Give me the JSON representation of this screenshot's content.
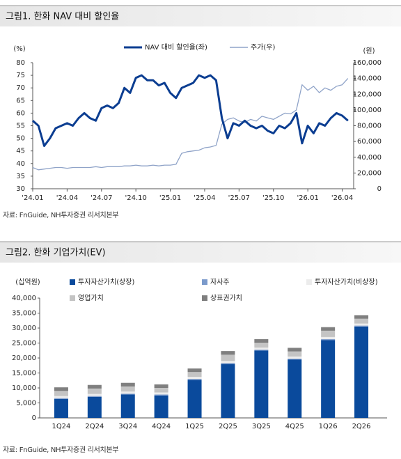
{
  "chart_data": [
    {
      "type": "line",
      "title": "그림1. 한화 NAV 대비 할인율",
      "source": "자료: FnGuide, NH투자증권 리서치본부",
      "ylabel": "(%)",
      "y2label": "(원)",
      "x": [
        0,
        0.5,
        1,
        1.5,
        2,
        2.5,
        3,
        3.5,
        4,
        4.5,
        5,
        5.5,
        6,
        6.5,
        7,
        7.5,
        8,
        8.5,
        9,
        9.5,
        10,
        10.5,
        11,
        11.5,
        12,
        12.5,
        13,
        13.5,
        14,
        14.5,
        15,
        15.5,
        16,
        16.5,
        17,
        17.5,
        18,
        18.5,
        19,
        19.5,
        20,
        20.5,
        21,
        21.5,
        22,
        22.5,
        23,
        23.5,
        24,
        24.5,
        25,
        25.5,
        26,
        26.5,
        27,
        27.5
      ],
      "xlim": [
        0,
        28
      ],
      "xticks": [
        {
          "value": 0,
          "label": "'24.01"
        },
        {
          "value": 3,
          "label": "'24.04"
        },
        {
          "value": 6,
          "label": "'24.07"
        },
        {
          "value": 9,
          "label": "'24.10"
        },
        {
          "value": 12,
          "label": "'25.01"
        },
        {
          "value": 15,
          "label": "'25.04"
        },
        {
          "value": 18,
          "label": "'25.07"
        },
        {
          "value": 21,
          "label": "'25.10"
        },
        {
          "value": 24,
          "label": "'26.01"
        },
        {
          "value": 27,
          "label": "'26.04"
        }
      ],
      "ylim": [
        30,
        80
      ],
      "yticks": [
        30,
        35,
        40,
        45,
        50,
        55,
        60,
        65,
        70,
        75,
        80
      ],
      "y2lim": [
        0,
        160000
      ],
      "y2ticks": [
        0,
        {
          "value": 20000,
          "label": "20,000"
        },
        {
          "value": 40000,
          "label": "40,000"
        },
        {
          "value": 60000,
          "label": "60,000"
        },
        {
          "value": 80000,
          "label": "80,000"
        },
        {
          "value": 100000,
          "label": "100,000"
        },
        {
          "value": 120000,
          "label": "120,000"
        },
        {
          "value": 140000,
          "label": "140,000"
        },
        {
          "value": 160000,
          "label": "160,000"
        }
      ],
      "series": [
        {
          "name": "NAV 대비 할인율(좌)",
          "color": "#0b3d91",
          "axis": "y",
          "values": [
            57,
            55,
            47,
            50,
            54,
            55,
            56,
            55,
            58,
            60,
            58,
            57,
            62,
            63,
            62,
            64,
            70,
            68,
            74,
            75,
            73,
            73,
            71,
            72,
            68,
            66,
            70,
            71,
            72,
            75,
            74,
            75,
            73,
            58,
            50,
            56,
            55,
            57,
            55,
            54,
            55,
            53,
            52,
            55,
            54,
            56,
            60,
            48,
            55,
            52,
            56,
            55,
            58,
            60,
            59,
            57
          ]
        },
        {
          "name": "주가(우)",
          "color": "#8fa3c8",
          "axis": "y2",
          "values": [
            27000,
            24000,
            25000,
            26000,
            27000,
            27000,
            26000,
            27000,
            27000,
            27000,
            27000,
            28000,
            27000,
            28000,
            28000,
            28000,
            29000,
            29000,
            30000,
            29000,
            29000,
            30000,
            29000,
            30000,
            30000,
            31000,
            45000,
            47000,
            48000,
            49000,
            52000,
            53000,
            55000,
            82000,
            88000,
            90000,
            86000,
            84000,
            88000,
            86000,
            92000,
            90000,
            88000,
            92000,
            96000,
            95000,
            100000,
            132000,
            125000,
            130000,
            122000,
            128000,
            125000,
            130000,
            132000,
            140000
          ]
        }
      ]
    },
    {
      "type": "bar",
      "stacked": true,
      "title": "그림2. 한화 기업가치(EV)",
      "source": "자료: FnGuide, NH투자증권 리서치본부",
      "ylabel": "(십억원)",
      "categories": [
        "1Q24",
        "2Q24",
        "3Q24",
        "4Q24",
        "1Q25",
        "2Q25",
        "3Q25",
        "4Q25",
        "1Q26",
        "2Q26"
      ],
      "ylim": [
        0,
        40000
      ],
      "yticks": [
        0,
        {
          "value": 5000,
          "label": "5,000"
        },
        {
          "value": 10000,
          "label": "10,000"
        },
        {
          "value": 15000,
          "label": "15,000"
        },
        {
          "value": 20000,
          "label": "20,000"
        },
        {
          "value": 25000,
          "label": "25,000"
        },
        {
          "value": 30000,
          "label": "30,000"
        },
        {
          "value": 35000,
          "label": "35,000"
        },
        {
          "value": 40000,
          "label": "40,000"
        }
      ],
      "series": [
        {
          "name": "투자자산가치(상장)",
          "color": "#0a4a9c",
          "values": [
            6300,
            7000,
            7800,
            7500,
            12700,
            18000,
            22500,
            19500,
            26000,
            30500
          ]
        },
        {
          "name": "자사주",
          "color": "#7b9acb",
          "values": [
            300,
            300,
            300,
            300,
            300,
            300,
            300,
            300,
            300,
            300
          ]
        },
        {
          "name": "투자자산가치(비상장)",
          "color": "#ececec",
          "values": [
            700,
            700,
            700,
            700,
            700,
            700,
            700,
            700,
            700,
            700
          ]
        },
        {
          "name": "영업가치",
          "color": "#c4c4c4",
          "values": [
            1700,
            1800,
            1700,
            1500,
            1600,
            2100,
            1600,
            1700,
            2100,
            1600
          ]
        },
        {
          "name": "상표권가치",
          "color": "#7f7f7f",
          "values": [
            1200,
            1200,
            1200,
            1200,
            1200,
            1200,
            1200,
            1200,
            1200,
            1200
          ]
        }
      ]
    }
  ]
}
